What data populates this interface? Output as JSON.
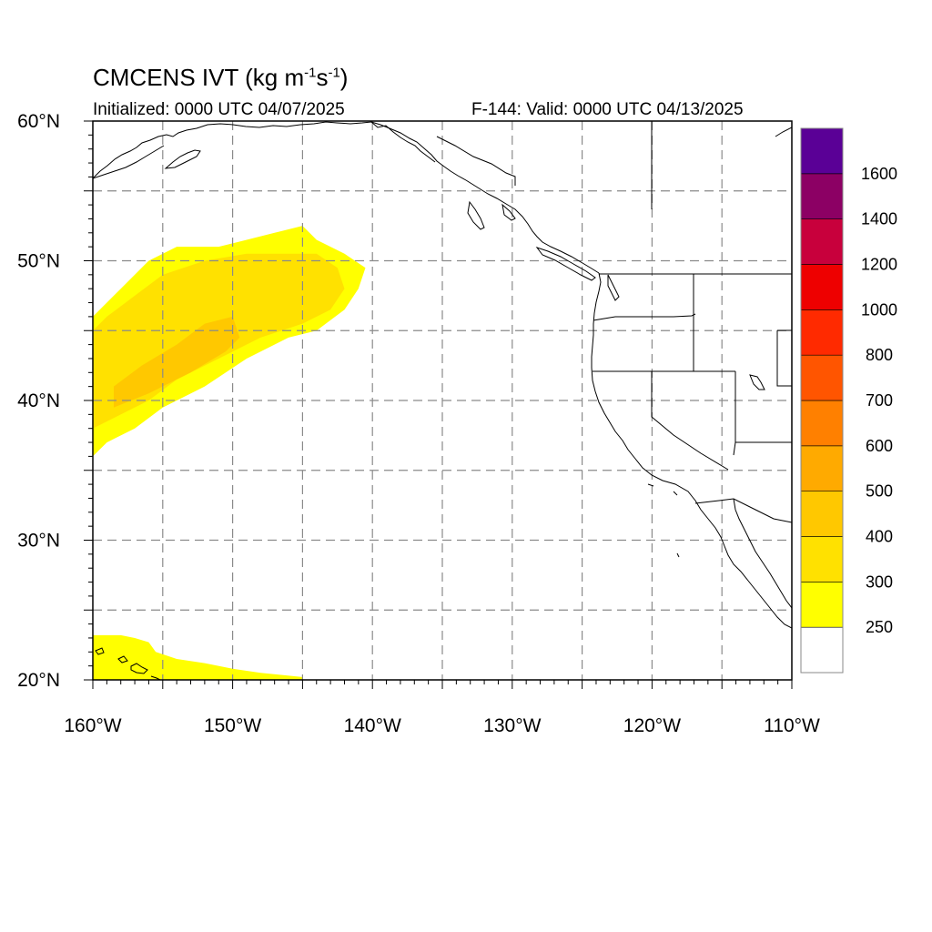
{
  "title": {
    "main": "CMCENS IVT (kg m",
    "exp1": "-1",
    "mid": "s",
    "exp2": "-1",
    "close": ")"
  },
  "initialized": "Initialized: 0000 UTC 04/07/2025",
  "valid": "F-144: Valid: 0000 UTC 04/13/2025",
  "map": {
    "lon_range": [
      -160,
      -110
    ],
    "lat_range": [
      20,
      60
    ],
    "grid_lon_step": 5,
    "grid_lat_step": 5,
    "lon_labels": [
      "160°W",
      "150°W",
      "140°W",
      "130°W",
      "120°W",
      "110°W"
    ],
    "lat_labels": [
      "20°N",
      "30°N",
      "40°N",
      "50°N",
      "60°N"
    ],
    "lon_label_values": [
      -160,
      -150,
      -140,
      -130,
      -120,
      -110
    ],
    "lat_label_values": [
      20,
      30,
      40,
      50,
      60
    ],
    "projection": "cylindrical equidistant",
    "grid_style": "dashed"
  },
  "colorbar": {
    "levels": [
      250,
      300,
      400,
      500,
      600,
      700,
      800,
      1000,
      1200,
      1400,
      1600
    ],
    "labels": [
      "250",
      "300",
      "400",
      "500",
      "600",
      "700",
      "800",
      "1000",
      "1200",
      "1400",
      "1600"
    ],
    "colors": [
      "#ffffff",
      "#ffff00",
      "#ffe100",
      "#ffc800",
      "#ffaa00",
      "#ff8000",
      "#ff5500",
      "#ff2a00",
      "#ee0000",
      "#c8003c",
      "#8c0064",
      "#5a0096"
    ]
  },
  "ivt_fields": [
    {
      "name": "northeast-pacific-plume",
      "regions": [
        {
          "level": "300",
          "color": "#ffff00",
          "polygon": [
            [
              -160,
              36
            ],
            [
              -159,
              37
            ],
            [
              -157,
              38
            ],
            [
              -155,
              39.5
            ],
            [
              -152,
              41
            ],
            [
              -149,
              43
            ],
            [
              -146,
              44.5
            ],
            [
              -144,
              45
            ],
            [
              -142,
              46.5
            ],
            [
              -141,
              48
            ],
            [
              -140.5,
              49.5
            ],
            [
              -142,
              50.5
            ],
            [
              -144,
              51.5
            ],
            [
              -145,
              52.5
            ],
            [
              -147,
              52
            ],
            [
              -149,
              51.5
            ],
            [
              -151,
              51
            ],
            [
              -154,
              51
            ],
            [
              -156,
              50
            ],
            [
              -158,
              48
            ],
            [
              -160,
              46
            ]
          ]
        },
        {
          "level": "400",
          "color": "#ffe100",
          "polygon": [
            [
              -160,
              38
            ],
            [
              -158,
              39
            ],
            [
              -156,
              40
            ],
            [
              -154,
              41.5
            ],
            [
              -151,
              43
            ],
            [
              -148,
              44.5
            ],
            [
              -145,
              45.5
            ],
            [
              -143,
              46.5
            ],
            [
              -142,
              48
            ],
            [
              -142.5,
              49.5
            ],
            [
              -144,
              50.5
            ],
            [
              -146,
              50.5
            ],
            [
              -149,
              50.5
            ],
            [
              -152,
              50
            ],
            [
              -155,
              49
            ],
            [
              -157,
              47.5
            ],
            [
              -159,
              46
            ],
            [
              -160,
              45
            ]
          ]
        },
        {
          "level": "500",
          "color": "#ffc800",
          "polygon": [
            [
              -158.5,
              39.5
            ],
            [
              -156,
              40.5
            ],
            [
              -153,
              42
            ],
            [
              -150.5,
              43.5
            ],
            [
              -149.5,
              44.5
            ],
            [
              -150,
              46
            ],
            [
              -152,
              45.5
            ],
            [
              -154,
              44
            ],
            [
              -156.5,
              42.5
            ],
            [
              -158.5,
              41
            ]
          ]
        }
      ]
    },
    {
      "name": "hawaii-patch",
      "regions": [
        {
          "level": "300",
          "color": "#ffff00",
          "polygon": [
            [
              -160,
              20
            ],
            [
              -145,
              20
            ],
            [
              -145,
              20.2
            ],
            [
              -148,
              20.5
            ],
            [
              -150,
              20.8
            ],
            [
              -152,
              21.2
            ],
            [
              -154,
              21.5
            ],
            [
              -155.5,
              22
            ],
            [
              -156,
              22.7
            ],
            [
              -157,
              23
            ],
            [
              -158,
              23.2
            ],
            [
              -160,
              23.2
            ]
          ]
        }
      ]
    }
  ]
}
